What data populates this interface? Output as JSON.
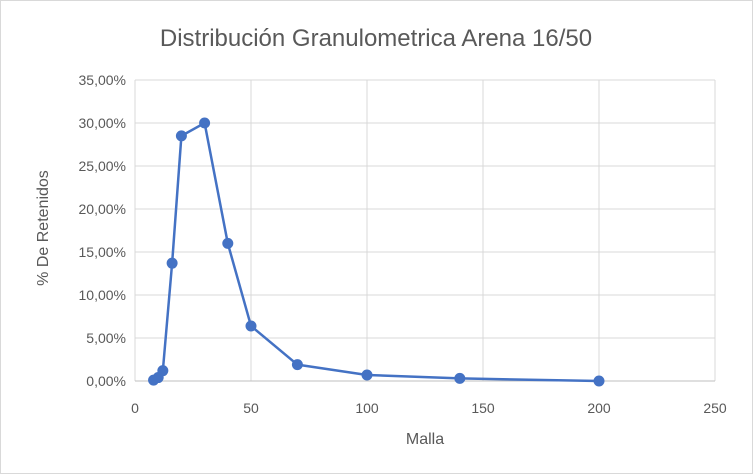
{
  "chart_data": {
    "type": "scatter",
    "title": "Distribución Granulometrica Arena 16/50",
    "xlabel": "Malla",
    "ylabel": "% De Retenidos",
    "xlim": [
      0,
      250
    ],
    "ylim": [
      0,
      0.35
    ],
    "x_ticks": [
      0,
      50,
      100,
      150,
      200,
      250
    ],
    "x_tick_labels": [
      "0",
      "50",
      "100",
      "150",
      "200",
      "250"
    ],
    "y_ticks": [
      0,
      0.05,
      0.1,
      0.15,
      0.2,
      0.25,
      0.3,
      0.35
    ],
    "y_tick_labels": [
      "0,00%",
      "5,00%",
      "10,00%",
      "15,00%",
      "20,00%",
      "25,00%",
      "30,00%",
      "35,00%"
    ],
    "grid": true,
    "legend": "none",
    "series": [
      {
        "color": "#4472c4",
        "style": "lines-and-markers",
        "x": [
          8,
          10,
          12,
          16,
          20,
          30,
          40,
          50,
          70,
          100,
          140,
          200
        ],
        "y": [
          0.001,
          0.004,
          0.012,
          0.137,
          0.285,
          0.3,
          0.16,
          0.064,
          0.019,
          0.007,
          0.003,
          0.0
        ]
      }
    ]
  }
}
